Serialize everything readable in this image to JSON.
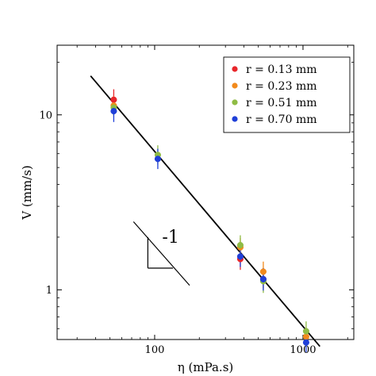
{
  "chart_data": {
    "type": "scatter",
    "xscale": "log",
    "yscale": "log",
    "xlabel": "η (mPa.s)",
    "ylabel": "V (mm/s)",
    "xlim": [
      22,
      2200
    ],
    "ylim": [
      0.52,
      25
    ],
    "x_ticks": [
      {
        "value": 100,
        "label": "100"
      },
      {
        "value": 1000,
        "label": "1000"
      }
    ],
    "y_ticks": [
      {
        "value": 1,
        "label": "1"
      },
      {
        "value": 10,
        "label": "10"
      }
    ],
    "legend_position": "top-right",
    "series": [
      {
        "name": "r = 0.13 mm",
        "color": "#e8262b",
        "points": [
          {
            "x": 53,
            "y": 12.2,
            "err_low": 10.6,
            "err_high": 14.0
          },
          {
            "x": 378,
            "y": 1.5,
            "err_low": 1.3,
            "err_high": 1.75
          },
          {
            "x": 540,
            "y": 1.15,
            "err_low": 1.02,
            "err_high": 1.3
          }
        ]
      },
      {
        "name": "r = 0.23 mm",
        "color": "#f28a1c",
        "points": [
          {
            "x": 53,
            "y": 11.3,
            "err_low": 10.0,
            "err_high": 12.8
          },
          {
            "x": 378,
            "y": 1.75,
            "err_low": 1.55,
            "err_high": 1.98
          },
          {
            "x": 540,
            "y": 1.27,
            "err_low": 1.1,
            "err_high": 1.45
          },
          {
            "x": 1050,
            "y": 0.54,
            "err_low": 0.48,
            "err_high": 0.61
          }
        ]
      },
      {
        "name": "r = 0.51 mm",
        "color": "#8fbc45",
        "points": [
          {
            "x": 53,
            "y": 11.0,
            "err_low": 9.8,
            "err_high": 12.4
          },
          {
            "x": 105,
            "y": 5.9,
            "err_low": 5.2,
            "err_high": 6.7
          },
          {
            "x": 378,
            "y": 1.8,
            "err_low": 1.58,
            "err_high": 2.05
          },
          {
            "x": 540,
            "y": 1.12,
            "err_low": 0.96,
            "err_high": 1.3
          },
          {
            "x": 1050,
            "y": 0.58,
            "err_low": 0.51,
            "err_high": 0.66
          }
        ]
      },
      {
        "name": "r = 0.70 mm",
        "color": "#1f3fd8",
        "points": [
          {
            "x": 53,
            "y": 10.5,
            "err_low": 9.1,
            "err_high": 12.1
          },
          {
            "x": 105,
            "y": 5.6,
            "err_low": 4.9,
            "err_high": 6.4
          },
          {
            "x": 378,
            "y": 1.55,
            "err_low": 1.35,
            "err_high": 1.78
          },
          {
            "x": 540,
            "y": 1.15,
            "err_low": 0.99,
            "err_high": 1.33
          },
          {
            "x": 1050,
            "y": 0.5,
            "err_low": 0.44,
            "err_high": 0.57
          }
        ]
      }
    ],
    "fit_line": {
      "slope": -1,
      "color": "#000000",
      "points": [
        {
          "x": 37,
          "y": 16.7
        },
        {
          "x": 1300,
          "y": 0.475
        }
      ]
    },
    "slope_triangle": {
      "label": "-1",
      "corner": {
        "x": 90,
        "y": 1.33
      },
      "hyp_start": {
        "x": 72,
        "y": 2.45
      },
      "hyp_end": {
        "x": 172,
        "y": 1.06
      },
      "vertical_top_y": 2.0,
      "horizontal_end_x": 133
    }
  }
}
